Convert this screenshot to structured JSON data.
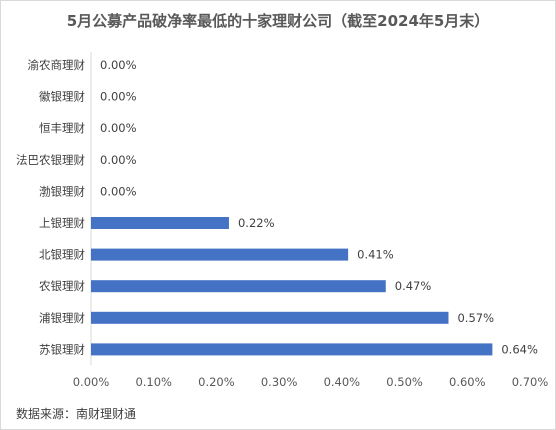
{
  "chart_data": {
    "type": "bar",
    "orientation": "horizontal",
    "title": "5月公募产品破净率最低的十家理财公司（截至2024年5月末）",
    "categories": [
      "渝农商理财",
      "徽银理财",
      "恒丰理财",
      "法巴农银理财",
      "渤银理财",
      "上银理财",
      "北银理财",
      "农银理财",
      "浦银理财",
      "苏银理财"
    ],
    "values": [
      0.0,
      0.0,
      0.0,
      0.0,
      0.0,
      0.22,
      0.41,
      0.47,
      0.57,
      0.64
    ],
    "value_labels": [
      "0.00%",
      "0.00%",
      "0.00%",
      "0.00%",
      "0.00%",
      "0.22%",
      "0.41%",
      "0.47%",
      "0.57%",
      "0.64%"
    ],
    "xlim": [
      0,
      0.7
    ],
    "x_ticks": [
      "0.00%",
      "0.10%",
      "0.20%",
      "0.30%",
      "0.40%",
      "0.50%",
      "0.60%",
      "0.70%"
    ],
    "grid": false,
    "legend": "none",
    "bar_color": "#4472c4"
  },
  "source": "数据来源：南财理财通"
}
